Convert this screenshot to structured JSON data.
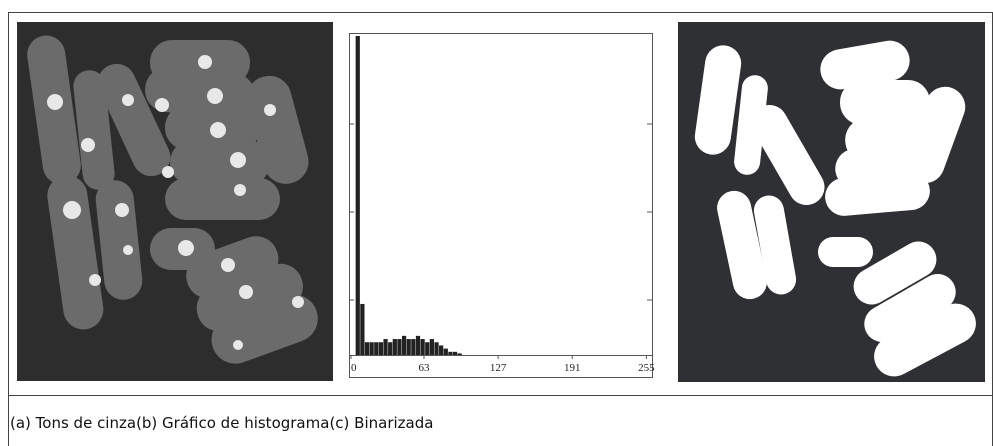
{
  "figure": {
    "captions": [
      "(a) Tons de cinza",
      "(b) Gráfico de histograma",
      "(c) Binarizada"
    ],
    "histogram": {
      "type": "histogram",
      "bins": [
        0,
        4,
        8,
        12,
        16,
        20,
        24,
        28,
        32,
        36,
        40,
        44,
        48,
        52,
        56,
        60,
        64,
        68,
        72,
        76,
        80,
        84,
        88,
        92,
        96,
        100
      ],
      "counts": [
        0,
        100,
        16,
        4,
        4,
        4,
        4,
        5,
        4,
        5,
        5,
        6,
        5,
        5,
        6,
        5,
        4,
        5,
        4,
        3,
        2,
        1,
        1,
        0.5,
        0
      ],
      "color": "#222222",
      "xlim": [
        0,
        259
      ],
      "ylim": [
        0,
        100
      ],
      "xticks": [
        0,
        63,
        127,
        191,
        255
      ]
    }
  }
}
